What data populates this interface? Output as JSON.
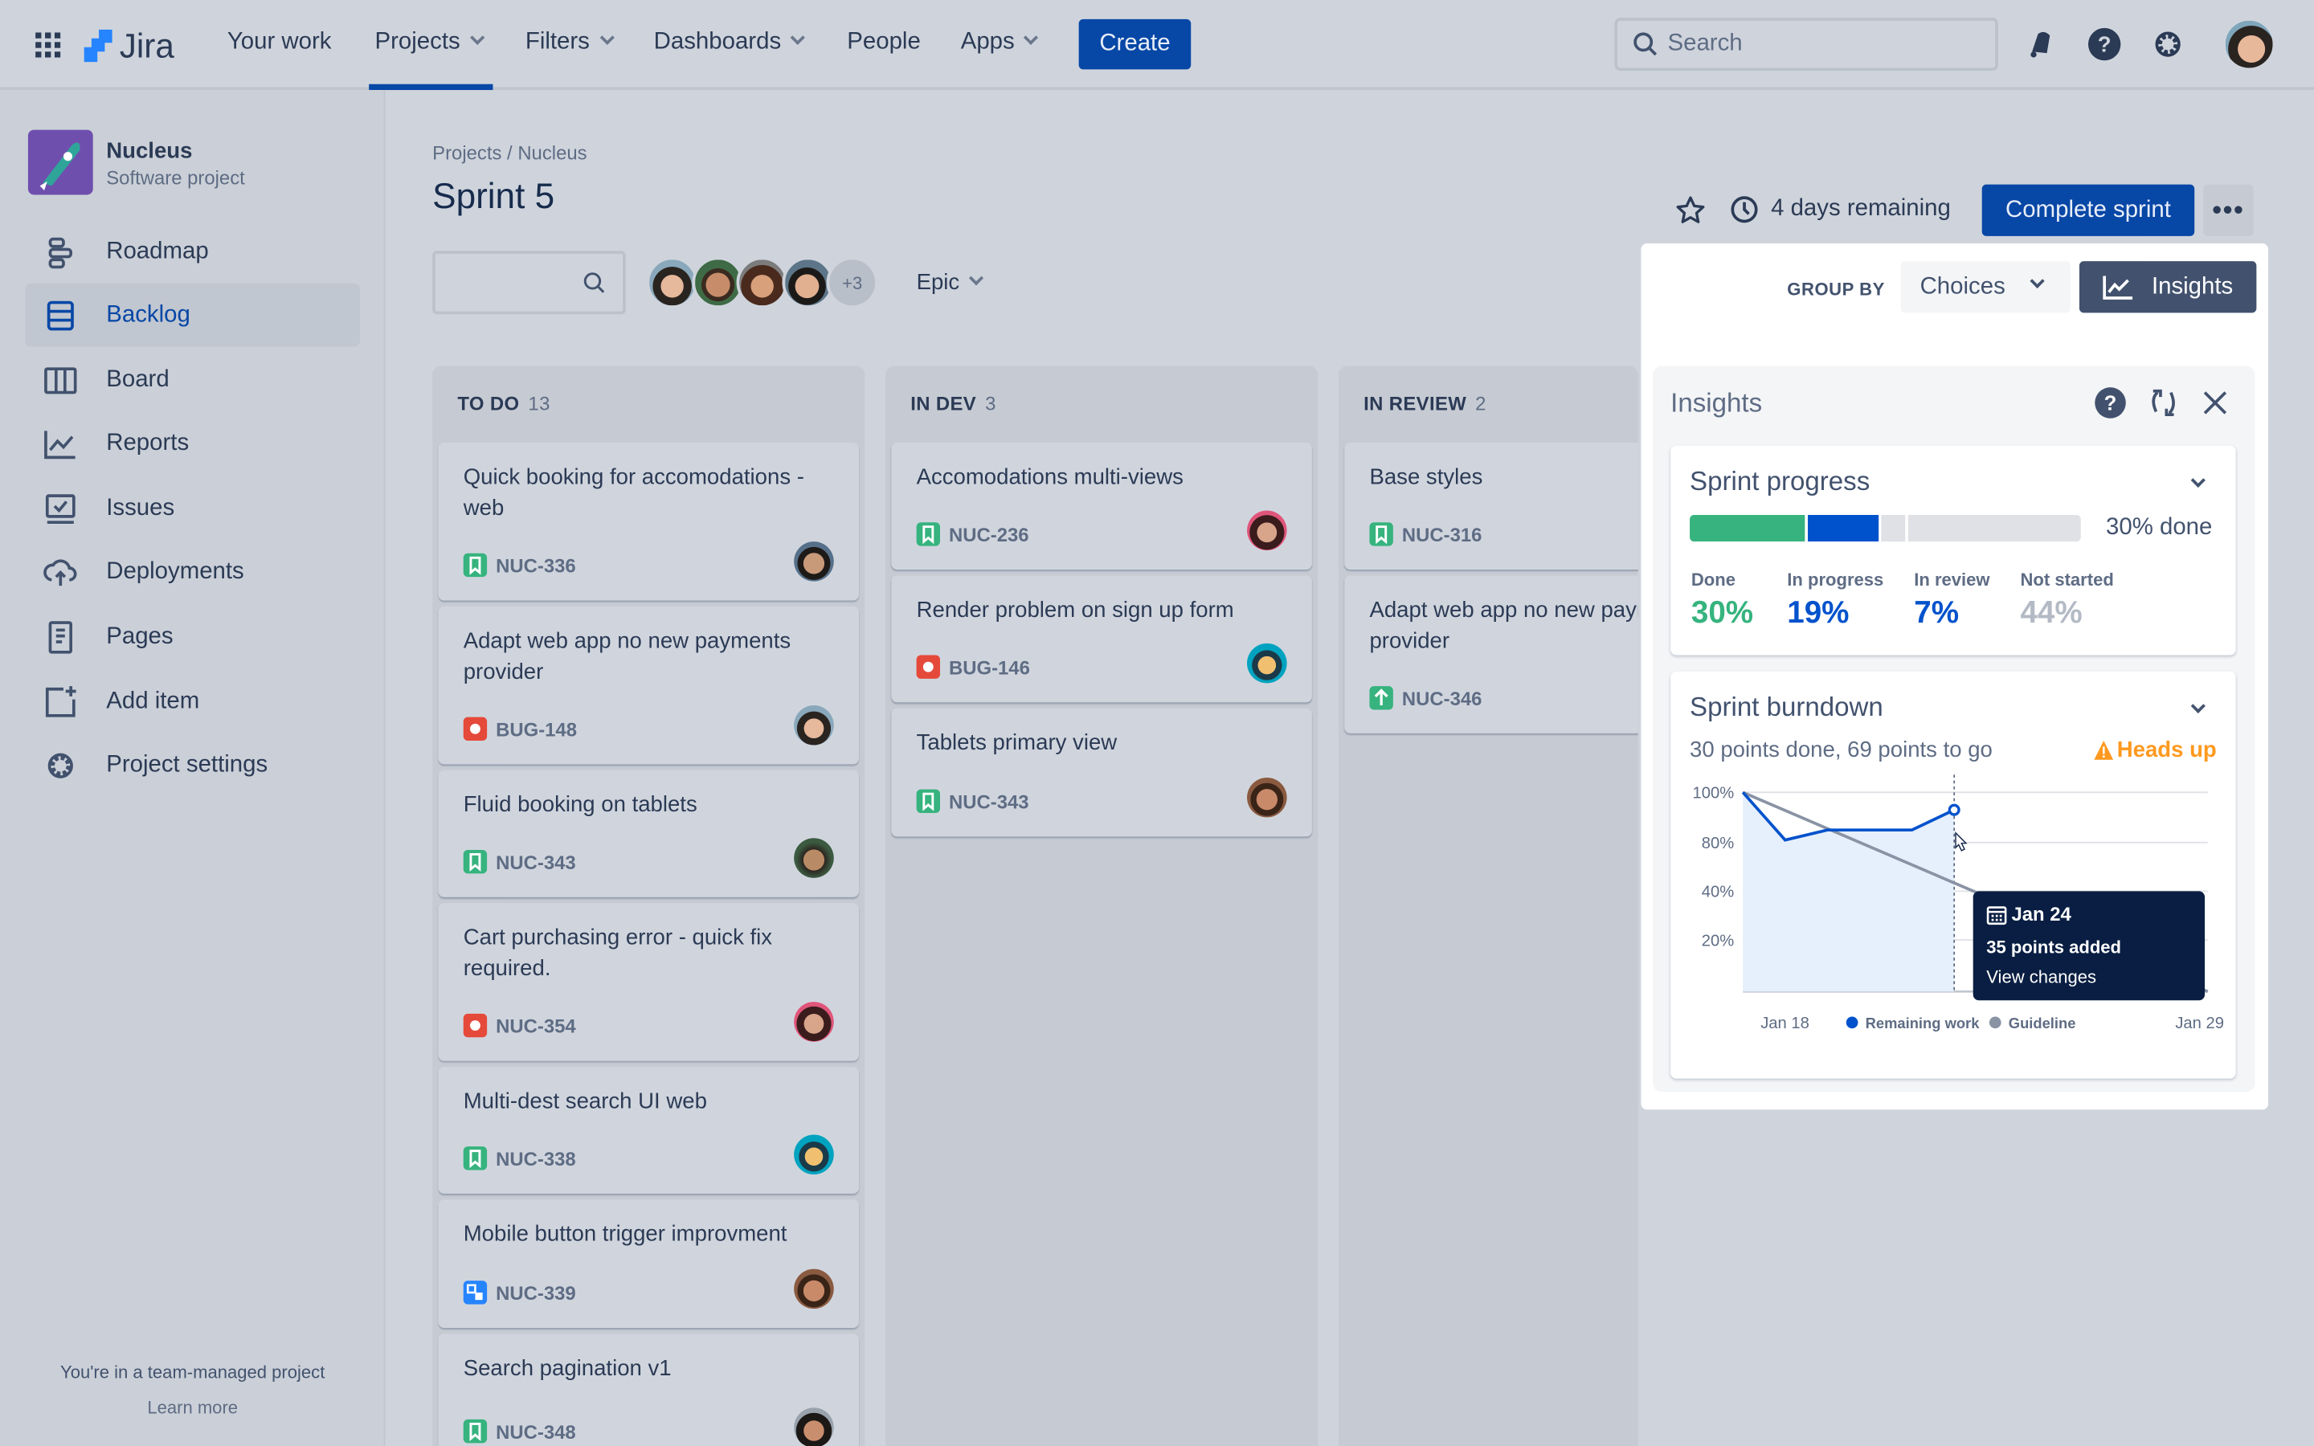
{
  "topnav": {
    "logo": "Jira",
    "items": [
      {
        "label": "Your work",
        "dropdown": false
      },
      {
        "label": "Projects",
        "dropdown": true,
        "active": true
      },
      {
        "label": "Filters",
        "dropdown": true
      },
      {
        "label": "Dashboards",
        "dropdown": true
      },
      {
        "label": "People",
        "dropdown": false
      },
      {
        "label": "Apps",
        "dropdown": true
      }
    ],
    "create_label": "Create",
    "search_placeholder": "Search",
    "accent": "#0747a6"
  },
  "sidebar": {
    "project_name": "Nucleus",
    "project_type": "Software project",
    "items": [
      {
        "label": "Roadmap",
        "icon": "roadmap-icon"
      },
      {
        "label": "Backlog",
        "icon": "backlog-icon",
        "active": true
      },
      {
        "label": "Board",
        "icon": "board-icon"
      },
      {
        "label": "Reports",
        "icon": "reports-icon"
      },
      {
        "label": "Issues",
        "icon": "issues-icon"
      },
      {
        "label": "Deployments",
        "icon": "deployments-icon"
      },
      {
        "label": "Pages",
        "icon": "pages-icon"
      },
      {
        "label": "Add item",
        "icon": "add-item-icon"
      },
      {
        "label": "Project settings",
        "icon": "gear-icon"
      }
    ],
    "footer_text": "You're in a team-managed project",
    "footer_link": "Learn more"
  },
  "header": {
    "breadcrumb": "Projects / Nucleus",
    "title": "Sprint 5",
    "days_remaining": "4 days remaining",
    "complete_label": "Complete sprint",
    "more_avatars": "+3",
    "epic_label": "Epic"
  },
  "columns": [
    {
      "name": "TO DO",
      "count": "13",
      "cards": [
        {
          "title": "Quick booking for accomodations - web",
          "key": "NUC-336",
          "type": "story"
        },
        {
          "title": "Adapt web app no new payments provider",
          "key": "BUG-148",
          "type": "bug"
        },
        {
          "title": "Fluid booking on tablets",
          "key": "NUC-343",
          "type": "story"
        },
        {
          "title": "Cart purchasing error - quick fix required.",
          "key": "NUC-354",
          "type": "bug"
        },
        {
          "title": "Multi-dest search UI web",
          "key": "NUC-338",
          "type": "story"
        },
        {
          "title": "Mobile button trigger improvment",
          "key": "NUC-339",
          "type": "subtask"
        },
        {
          "title": "Search pagination v1",
          "key": "NUC-348",
          "type": "story"
        }
      ]
    },
    {
      "name": "IN DEV",
      "count": "3",
      "cards": [
        {
          "title": "Accomodations multi-views",
          "key": "NUC-236",
          "type": "story"
        },
        {
          "title": "Render problem on sign up form",
          "key": "BUG-146",
          "type": "bug"
        },
        {
          "title": "Tablets primary view",
          "key": "NUC-343",
          "type": "story"
        }
      ]
    },
    {
      "name": "IN REVIEW",
      "count": "2",
      "cards": [
        {
          "title": "Base styles",
          "key": "NUC-316",
          "type": "story"
        },
        {
          "title": "Adapt web app no new payments provider",
          "key": "NUC-346",
          "type": "improvement"
        }
      ]
    }
  ],
  "panel": {
    "group_by_label": "GROUP BY",
    "group_by_value": "Choices",
    "insights_button": "Insights",
    "title": "Insights",
    "progress": {
      "title": "Sprint progress",
      "done_label": "30% done",
      "stats": [
        {
          "label": "Done",
          "value": "30%",
          "fraction": 0.3,
          "color": "#36b37e"
        },
        {
          "label": "In progress",
          "value": "19%",
          "fraction": 0.19,
          "color": "#0052cc"
        },
        {
          "label": "In review",
          "value": "7%",
          "fraction": 0.07,
          "color": "#0052cc"
        },
        {
          "label": "Not started",
          "value": "44%",
          "fraction": 0.44,
          "color": "#b3bac5"
        }
      ]
    },
    "burndown": {
      "title": "Sprint burndown",
      "summary": "30 points done, 69 points to go",
      "warning": "Heads up",
      "warning_color": "#ff991f",
      "tooltip": {
        "date": "Jan 24",
        "text": "35 points added",
        "link": "View changes"
      }
    }
  },
  "chart_data": {
    "type": "line",
    "x_labels": [
      "Jan 18",
      "Jan 29"
    ],
    "y_ticks": [
      "100%",
      "80%",
      "40%",
      "20%"
    ],
    "y_tick_values": [
      0,
      20,
      40,
      80,
      100
    ],
    "grid": true,
    "legend_position": "bottom",
    "series": [
      {
        "name": "Remaining work",
        "color": "#0052cc",
        "fill": true,
        "points": [
          [
            "Jan 18",
            100
          ],
          [
            "Jan 19",
            81
          ],
          [
            "Jan 20",
            85
          ],
          [
            "Jan 22",
            85
          ],
          [
            "Jan 23",
            93
          ]
        ]
      },
      {
        "name": "Guideline",
        "color": "#8993a4",
        "points": [
          [
            "Jan 18",
            100
          ],
          [
            "Jan 29",
            0
          ]
        ]
      }
    ],
    "highlight": "Jan 23"
  }
}
